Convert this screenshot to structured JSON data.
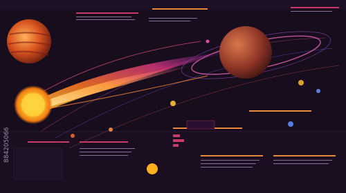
{
  "watermark": {
    "id": "884205066"
  }
}
